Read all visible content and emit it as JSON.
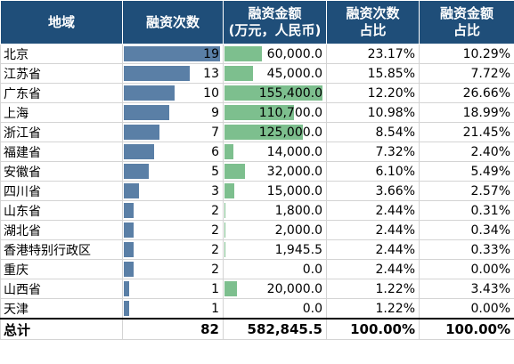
{
  "headers": {
    "region": "地域",
    "count": "融资次数",
    "amount_line1": "融资金额",
    "amount_line2": "(万元，人民币)",
    "count_share_line1": "融资次数",
    "count_share_line2": "占比",
    "amount_share_line1": "融资金额",
    "amount_share_line2": "占比"
  },
  "rows": [
    {
      "region": "北京",
      "count": 19,
      "count_text": "19",
      "amount": 60000.0,
      "amount_text": "60,000.0",
      "count_share": "23.17%",
      "amount_share": "10.29%"
    },
    {
      "region": "江苏省",
      "count": 13,
      "count_text": "13",
      "amount": 45000.0,
      "amount_text": "45,000.0",
      "count_share": "15.85%",
      "amount_share": "7.72%"
    },
    {
      "region": "广东省",
      "count": 10,
      "count_text": "10",
      "amount": 155400.0,
      "amount_text": "155,400.0",
      "count_share": "12.20%",
      "amount_share": "26.66%"
    },
    {
      "region": "上海",
      "count": 9,
      "count_text": "9",
      "amount": 110700.0,
      "amount_text": "110,700.0",
      "count_share": "10.98%",
      "amount_share": "18.99%"
    },
    {
      "region": "浙江省",
      "count": 7,
      "count_text": "7",
      "amount": 125000.0,
      "amount_text": "125,000.0",
      "count_share": "8.54%",
      "amount_share": "21.45%"
    },
    {
      "region": "福建省",
      "count": 6,
      "count_text": "6",
      "amount": 14000.0,
      "amount_text": "14,000.0",
      "count_share": "7.32%",
      "amount_share": "2.40%"
    },
    {
      "region": "安徽省",
      "count": 5,
      "count_text": "5",
      "amount": 32000.0,
      "amount_text": "32,000.0",
      "count_share": "6.10%",
      "amount_share": "5.49%"
    },
    {
      "region": "四川省",
      "count": 3,
      "count_text": "3",
      "amount": 15000.0,
      "amount_text": "15,000.0",
      "count_share": "3.66%",
      "amount_share": "2.57%"
    },
    {
      "region": "山东省",
      "count": 2,
      "count_text": "2",
      "amount": 1800.0,
      "amount_text": "1,800.0",
      "count_share": "2.44%",
      "amount_share": "0.31%"
    },
    {
      "region": "湖北省",
      "count": 2,
      "count_text": "2",
      "amount": 2000.0,
      "amount_text": "2,000.0",
      "count_share": "2.44%",
      "amount_share": "0.34%"
    },
    {
      "region": "香港特别行政区",
      "count": 2,
      "count_text": "2",
      "amount": 1945.5,
      "amount_text": "1,945.5",
      "count_share": "2.44%",
      "amount_share": "0.33%"
    },
    {
      "region": "重庆",
      "count": 2,
      "count_text": "2",
      "amount": 0.0,
      "amount_text": "0.0",
      "count_share": "2.44%",
      "amount_share": "0.00%"
    },
    {
      "region": "山西省",
      "count": 1,
      "count_text": "1",
      "amount": 20000.0,
      "amount_text": "20,000.0",
      "count_share": "1.22%",
      "amount_share": "3.43%"
    },
    {
      "region": "天津",
      "count": 1,
      "count_text": "1",
      "amount": 0.0,
      "amount_text": "0.0",
      "count_share": "1.22%",
      "amount_share": "0.00%"
    }
  ],
  "total": {
    "label": "总计",
    "count": "82",
    "amount": "582,845.5",
    "count_share": "100.00%",
    "amount_share": "100.00%"
  },
  "colors": {
    "header_bg": "#1f4e79",
    "count_bar": "#5a7fa6",
    "amount_bar": "#7dbf8e"
  }
}
